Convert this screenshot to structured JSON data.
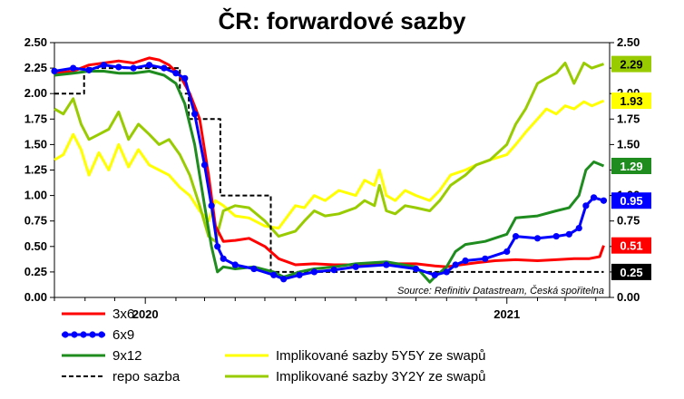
{
  "chart_data": {
    "type": "line",
    "title": "ČR: forwardové sazby",
    "source": "Source: Refinitiv Datastream, Česká spořitelna",
    "y_ticks": [
      "0.00",
      "0.25",
      "0.50",
      "0.75",
      "1.00",
      "1.25",
      "1.50",
      "1.75",
      "2.00",
      "2.25",
      "2.50"
    ],
    "ylim": [
      0,
      2.5
    ],
    "x_labels": [
      "2020",
      "2021"
    ],
    "xlim": [
      "2019-10-01",
      "2021-04-15"
    ],
    "grid": false,
    "legend_position": "bottom",
    "series": [
      {
        "name": "3x6",
        "color": "#ff0000",
        "style": "solid",
        "end_label": "0.51",
        "points": [
          [
            "2019-10-01",
            2.2
          ],
          [
            "2019-10-20",
            2.22
          ],
          [
            "2019-11-05",
            2.28
          ],
          [
            "2019-11-20",
            2.3
          ],
          [
            "2019-12-05",
            2.32
          ],
          [
            "2019-12-20",
            2.3
          ],
          [
            "2020-01-05",
            2.35
          ],
          [
            "2020-01-15",
            2.33
          ],
          [
            "2020-01-25",
            2.28
          ],
          [
            "2020-02-05",
            2.18
          ],
          [
            "2020-02-15",
            2.0
          ],
          [
            "2020-02-25",
            1.75
          ],
          [
            "2020-03-05",
            1.2
          ],
          [
            "2020-03-12",
            0.7
          ],
          [
            "2020-03-20",
            0.55
          ],
          [
            "2020-04-01",
            0.56
          ],
          [
            "2020-04-15",
            0.58
          ],
          [
            "2020-05-01",
            0.5
          ],
          [
            "2020-05-15",
            0.38
          ],
          [
            "2020-06-01",
            0.32
          ],
          [
            "2020-06-20",
            0.33
          ],
          [
            "2020-07-10",
            0.32
          ],
          [
            "2020-08-01",
            0.32
          ],
          [
            "2020-09-01",
            0.33
          ],
          [
            "2020-10-01",
            0.33
          ],
          [
            "2020-10-20",
            0.31
          ],
          [
            "2020-11-01",
            0.3
          ],
          [
            "2020-11-15",
            0.32
          ],
          [
            "2020-12-01",
            0.34
          ],
          [
            "2020-12-20",
            0.36
          ],
          [
            "2021-01-10",
            0.37
          ],
          [
            "2021-02-01",
            0.36
          ],
          [
            "2021-02-20",
            0.37
          ],
          [
            "2021-03-10",
            0.38
          ],
          [
            "2021-03-25",
            0.38
          ],
          [
            "2021-04-05",
            0.4
          ],
          [
            "2021-04-09",
            0.51
          ]
        ]
      },
      {
        "name": "6x9",
        "color": "#0000ff",
        "style": "dotted",
        "end_label": "0.95",
        "points": [
          [
            "2019-10-01",
            2.22
          ],
          [
            "2019-10-20",
            2.25
          ],
          [
            "2019-11-05",
            2.23
          ],
          [
            "2019-11-20",
            2.28
          ],
          [
            "2019-12-05",
            2.26
          ],
          [
            "2019-12-20",
            2.25
          ],
          [
            "2020-01-05",
            2.28
          ],
          [
            "2020-01-20",
            2.25
          ],
          [
            "2020-02-01",
            2.2
          ],
          [
            "2020-02-10",
            2.15
          ],
          [
            "2020-02-20",
            1.8
          ],
          [
            "2020-03-01",
            1.3
          ],
          [
            "2020-03-08",
            0.9
          ],
          [
            "2020-03-14",
            0.5
          ],
          [
            "2020-03-20",
            0.38
          ],
          [
            "2020-04-01",
            0.32
          ],
          [
            "2020-04-20",
            0.28
          ],
          [
            "2020-05-10",
            0.22
          ],
          [
            "2020-05-20",
            0.18
          ],
          [
            "2020-06-05",
            0.22
          ],
          [
            "2020-06-20",
            0.25
          ],
          [
            "2020-07-10",
            0.27
          ],
          [
            "2020-08-01",
            0.3
          ],
          [
            "2020-09-01",
            0.32
          ],
          [
            "2020-10-01",
            0.28
          ],
          [
            "2020-10-20",
            0.22
          ],
          [
            "2020-11-01",
            0.25
          ],
          [
            "2020-11-10",
            0.32
          ],
          [
            "2020-11-20",
            0.36
          ],
          [
            "2020-12-10",
            0.38
          ],
          [
            "2021-01-01",
            0.45
          ],
          [
            "2021-01-10",
            0.6
          ],
          [
            "2021-02-01",
            0.58
          ],
          [
            "2021-02-20",
            0.6
          ],
          [
            "2021-03-05",
            0.62
          ],
          [
            "2021-03-15",
            0.68
          ],
          [
            "2021-03-22",
            0.9
          ],
          [
            "2021-03-30",
            0.98
          ],
          [
            "2021-04-09",
            0.95
          ]
        ]
      },
      {
        "name": "9x12",
        "color": "#1e8c1e",
        "style": "solid",
        "end_label": "1.29",
        "points": [
          [
            "2019-10-01",
            2.18
          ],
          [
            "2019-10-20",
            2.2
          ],
          [
            "2019-11-05",
            2.22
          ],
          [
            "2019-11-20",
            2.22
          ],
          [
            "2019-12-05",
            2.2
          ],
          [
            "2019-12-20",
            2.2
          ],
          [
            "2020-01-05",
            2.22
          ],
          [
            "2020-01-20",
            2.18
          ],
          [
            "2020-02-01",
            2.1
          ],
          [
            "2020-02-10",
            1.9
          ],
          [
            "2020-02-20",
            1.5
          ],
          [
            "2020-03-01",
            0.9
          ],
          [
            "2020-03-08",
            0.5
          ],
          [
            "2020-03-14",
            0.25
          ],
          [
            "2020-03-20",
            0.3
          ],
          [
            "2020-04-01",
            0.28
          ],
          [
            "2020-04-20",
            0.3
          ],
          [
            "2020-05-10",
            0.25
          ],
          [
            "2020-05-20",
            0.2
          ],
          [
            "2020-06-05",
            0.25
          ],
          [
            "2020-06-20",
            0.28
          ],
          [
            "2020-07-10",
            0.3
          ],
          [
            "2020-08-01",
            0.33
          ],
          [
            "2020-09-01",
            0.35
          ],
          [
            "2020-10-01",
            0.3
          ],
          [
            "2020-10-15",
            0.15
          ],
          [
            "2020-10-20",
            0.2
          ],
          [
            "2020-11-01",
            0.3
          ],
          [
            "2020-11-10",
            0.45
          ],
          [
            "2020-11-20",
            0.52
          ],
          [
            "2020-12-10",
            0.55
          ],
          [
            "2021-01-01",
            0.62
          ],
          [
            "2021-01-10",
            0.78
          ],
          [
            "2021-02-01",
            0.8
          ],
          [
            "2021-02-20",
            0.85
          ],
          [
            "2021-03-05",
            0.88
          ],
          [
            "2021-03-15",
            1.0
          ],
          [
            "2021-03-22",
            1.25
          ],
          [
            "2021-03-30",
            1.33
          ],
          [
            "2021-04-09",
            1.29
          ]
        ]
      },
      {
        "name": "repo sazba",
        "color": "#000000",
        "style": "dashed",
        "end_label": "0.25",
        "points": [
          [
            "2019-10-01",
            2.0
          ],
          [
            "2019-10-31",
            2.0
          ],
          [
            "2019-10-31",
            2.25
          ],
          [
            "2020-02-05",
            2.25
          ],
          [
            "2020-02-05",
            2.0
          ],
          [
            "2020-02-14",
            2.0
          ],
          [
            "2020-02-14",
            1.75
          ],
          [
            "2020-03-17",
            1.75
          ],
          [
            "2020-03-17",
            1.0
          ],
          [
            "2020-03-26",
            1.0
          ],
          [
            "2020-03-26",
            1.0
          ],
          [
            "2020-05-07",
            1.0
          ],
          [
            "2020-05-07",
            0.25
          ],
          [
            "2021-04-09",
            0.25
          ]
        ]
      },
      {
        "name": "Implikované sazby 5Y5Y ze swapů",
        "color": "#ffff00",
        "style": "solid",
        "end_label": "1.93",
        "points": [
          [
            "2019-10-01",
            1.35
          ],
          [
            "2019-10-10",
            1.4
          ],
          [
            "2019-10-20",
            1.6
          ],
          [
            "2019-10-28",
            1.45
          ],
          [
            "2019-11-05",
            1.2
          ],
          [
            "2019-11-15",
            1.42
          ],
          [
            "2019-11-25",
            1.25
          ],
          [
            "2019-12-05",
            1.5
          ],
          [
            "2019-12-15",
            1.28
          ],
          [
            "2019-12-25",
            1.45
          ],
          [
            "2020-01-05",
            1.3
          ],
          [
            "2020-01-15",
            1.25
          ],
          [
            "2020-01-25",
            1.2
          ],
          [
            "2020-02-05",
            1.08
          ],
          [
            "2020-02-15",
            1.0
          ],
          [
            "2020-02-25",
            0.85
          ],
          [
            "2020-03-05",
            0.75
          ],
          [
            "2020-03-12",
            0.95
          ],
          [
            "2020-03-20",
            0.9
          ],
          [
            "2020-04-01",
            0.8
          ],
          [
            "2020-04-15",
            0.78
          ],
          [
            "2020-05-01",
            0.7
          ],
          [
            "2020-05-15",
            0.68
          ],
          [
            "2020-06-01",
            0.9
          ],
          [
            "2020-06-10",
            0.88
          ],
          [
            "2020-06-20",
            1.0
          ],
          [
            "2020-07-01",
            0.95
          ],
          [
            "2020-07-15",
            1.05
          ],
          [
            "2020-08-01",
            1.0
          ],
          [
            "2020-08-10",
            1.15
          ],
          [
            "2020-08-20",
            1.1
          ],
          [
            "2020-08-25",
            1.25
          ],
          [
            "2020-09-01",
            1.0
          ],
          [
            "2020-09-10",
            0.95
          ],
          [
            "2020-09-20",
            1.05
          ],
          [
            "2020-10-01",
            1.0
          ],
          [
            "2020-10-15",
            0.95
          ],
          [
            "2020-10-25",
            1.05
          ],
          [
            "2020-11-05",
            1.2
          ],
          [
            "2020-11-20",
            1.25
          ],
          [
            "2020-12-01",
            1.3
          ],
          [
            "2020-12-15",
            1.35
          ],
          [
            "2021-01-01",
            1.4
          ],
          [
            "2021-01-10",
            1.5
          ],
          [
            "2021-01-20",
            1.62
          ],
          [
            "2021-02-01",
            1.75
          ],
          [
            "2021-02-10",
            1.85
          ],
          [
            "2021-02-20",
            1.8
          ],
          [
            "2021-03-01",
            1.88
          ],
          [
            "2021-03-10",
            1.85
          ],
          [
            "2021-03-20",
            1.92
          ],
          [
            "2021-03-28",
            1.88
          ],
          [
            "2021-04-09",
            1.93
          ]
        ]
      },
      {
        "name": "Implikované sazby 3Y2Y ze swapů",
        "color": "#99cc00",
        "style": "solid",
        "end_label": "2.29",
        "points": [
          [
            "2019-10-01",
            1.85
          ],
          [
            "2019-10-10",
            1.8
          ],
          [
            "2019-10-20",
            1.95
          ],
          [
            "2019-10-28",
            1.7
          ],
          [
            "2019-11-05",
            1.55
          ],
          [
            "2019-11-15",
            1.6
          ],
          [
            "2019-11-25",
            1.65
          ],
          [
            "2019-12-05",
            1.82
          ],
          [
            "2019-12-15",
            1.55
          ],
          [
            "2019-12-25",
            1.7
          ],
          [
            "2020-01-05",
            1.6
          ],
          [
            "2020-01-15",
            1.5
          ],
          [
            "2020-01-25",
            1.55
          ],
          [
            "2020-02-05",
            1.4
          ],
          [
            "2020-02-15",
            1.2
          ],
          [
            "2020-02-25",
            0.9
          ],
          [
            "2020-03-05",
            0.6
          ],
          [
            "2020-03-12",
            0.55
          ],
          [
            "2020-03-20",
            0.85
          ],
          [
            "2020-04-01",
            0.9
          ],
          [
            "2020-04-15",
            0.88
          ],
          [
            "2020-05-01",
            0.75
          ],
          [
            "2020-05-15",
            0.6
          ],
          [
            "2020-06-01",
            0.65
          ],
          [
            "2020-06-10",
            0.75
          ],
          [
            "2020-06-20",
            0.85
          ],
          [
            "2020-07-01",
            0.8
          ],
          [
            "2020-07-15",
            0.82
          ],
          [
            "2020-08-01",
            0.88
          ],
          [
            "2020-08-10",
            0.95
          ],
          [
            "2020-08-20",
            0.9
          ],
          [
            "2020-08-25",
            1.1
          ],
          [
            "2020-09-01",
            0.85
          ],
          [
            "2020-09-10",
            0.82
          ],
          [
            "2020-09-20",
            0.9
          ],
          [
            "2020-10-01",
            0.88
          ],
          [
            "2020-10-15",
            0.85
          ],
          [
            "2020-10-25",
            0.95
          ],
          [
            "2020-11-05",
            1.1
          ],
          [
            "2020-11-20",
            1.2
          ],
          [
            "2020-12-01",
            1.3
          ],
          [
            "2020-12-15",
            1.35
          ],
          [
            "2021-01-01",
            1.5
          ],
          [
            "2021-01-10",
            1.7
          ],
          [
            "2021-01-20",
            1.85
          ],
          [
            "2021-02-01",
            2.1
          ],
          [
            "2021-02-10",
            2.15
          ],
          [
            "2021-02-20",
            2.2
          ],
          [
            "2021-03-01",
            2.3
          ],
          [
            "2021-03-10",
            2.1
          ],
          [
            "2021-03-20",
            2.3
          ],
          [
            "2021-03-28",
            2.25
          ],
          [
            "2021-04-09",
            2.29
          ]
        ]
      }
    ],
    "end_badges": [
      {
        "label": "2.29",
        "value": 2.29,
        "bg": "#99cc00",
        "fg": "#000000"
      },
      {
        "label": "1.93",
        "value": 1.93,
        "bg": "#ffff00",
        "fg": "#000000"
      },
      {
        "label": "1.29",
        "value": 1.29,
        "bg": "#1e8c1e",
        "fg": "#ffffff"
      },
      {
        "label": "0.95",
        "value": 0.95,
        "bg": "#0000ff",
        "fg": "#ffffff"
      },
      {
        "label": "0.51",
        "value": 0.51,
        "bg": "#ff0000",
        "fg": "#ffffff"
      },
      {
        "label": "0.25",
        "value": 0.25,
        "bg": "#000000",
        "fg": "#ffffff"
      }
    ]
  }
}
